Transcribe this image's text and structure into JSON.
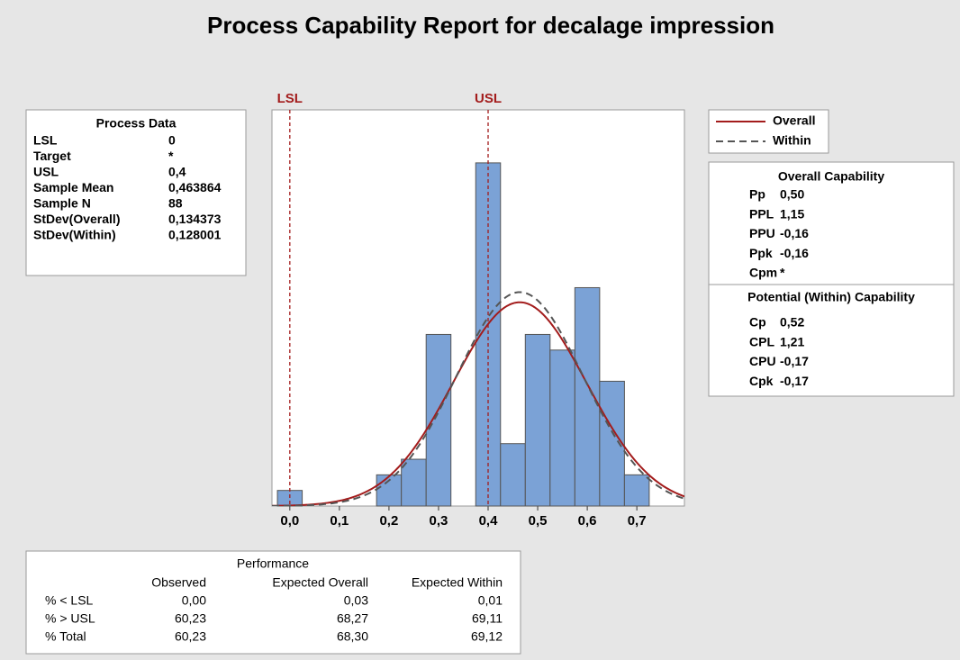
{
  "title": "Process Capability Report for decalage impression",
  "process_data": {
    "title": "Process Data",
    "rows": [
      {
        "name": "LSL",
        "value": 0,
        "value_label": "0"
      },
      {
        "name": "Target",
        "value": null,
        "value_label": "*"
      },
      {
        "name": "USL",
        "value": 0.4,
        "value_label": "0,4"
      },
      {
        "name": "Sample Mean",
        "value": 0.463864,
        "value_label": "0,463864"
      },
      {
        "name": "Sample N",
        "value": 88,
        "value_label": "88"
      },
      {
        "name": "StDev(Overall)",
        "value": 0.134373,
        "value_label": "0,134373"
      },
      {
        "name": "StDev(Within)",
        "value": 0.128001,
        "value_label": "0,128001"
      }
    ]
  },
  "chart_data": {
    "type": "histogram",
    "bins": [
      -0.025,
      0.025,
      0.075,
      0.125,
      0.175,
      0.225,
      0.275,
      0.325,
      0.375,
      0.425,
      0.475,
      0.525,
      0.575,
      0.625,
      0.675,
      0.725
    ],
    "values": [
      1,
      0,
      0,
      0,
      2,
      3,
      11,
      0,
      22,
      4,
      11,
      10,
      14,
      8,
      2
    ],
    "color": "#7ba2d6",
    "xlim": [
      -0.036,
      0.796
    ],
    "ylim": [
      0,
      25.4
    ],
    "xticks": [
      {
        "value": 0,
        "label": "0,0"
      },
      {
        "value": 0.1,
        "label": "0,1"
      },
      {
        "value": 0.2,
        "label": "0,2"
      },
      {
        "value": 0.3,
        "label": "0,3"
      },
      {
        "value": 0.4,
        "label": "0,4"
      },
      {
        "value": 0.5,
        "label": "0,5"
      },
      {
        "value": 0.6,
        "label": "0,6"
      },
      {
        "value": 0.7,
        "label": "0,7"
      }
    ],
    "spec_color": "#a31c1c",
    "series": [
      {
        "name": "Overall",
        "color": "#a31c1c",
        "dashed": false
      },
      {
        "name": "Within",
        "color": "#555555",
        "dashed": true
      }
    ]
  },
  "overall_capability": {
    "title": "Overall Capability",
    "rows": [
      [
        "Pp",
        "0,50"
      ],
      [
        "PPL",
        "1,15"
      ],
      [
        "PPU",
        "-0,16"
      ],
      [
        "Ppk",
        "-0,16"
      ],
      [
        "Cpm",
        "*"
      ]
    ]
  },
  "potential_capability": {
    "title": "Potential (Within) Capability",
    "rows": [
      [
        "Cp",
        "0,52"
      ],
      [
        "CPL",
        "1,21"
      ],
      [
        "CPU",
        "-0,17"
      ],
      [
        "Cpk",
        "-0,17"
      ]
    ]
  },
  "performance": {
    "title": "Performance",
    "columns": [
      "Observed",
      "Expected Overall",
      "Expected Within"
    ],
    "rows": [
      {
        "label": "% < LSL",
        "cells": [
          "0,00",
          "0,03",
          "0,01"
        ]
      },
      {
        "label": "% > USL",
        "cells": [
          "60,23",
          "68,27",
          "69,11"
        ]
      },
      {
        "label": "% Total",
        "cells": [
          "60,23",
          "68,30",
          "69,12"
        ]
      }
    ]
  }
}
